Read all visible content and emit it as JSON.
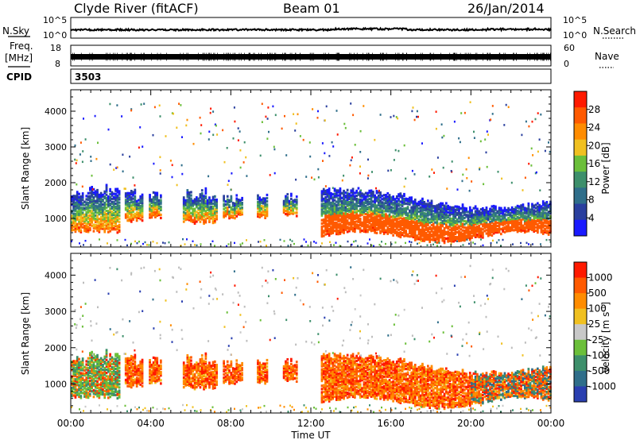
{
  "header": {
    "title": "Clyde River (fitACF)",
    "beam": "Beam 01",
    "date": "26/Jan/2014"
  },
  "strip_nsky": {
    "left_label": "N.Sky",
    "right_label": "N.Search",
    "left_ticks": [
      "10^5",
      "10^0"
    ],
    "right_ticks": [
      "10^5",
      "10^0"
    ]
  },
  "strip_freq": {
    "left_label_1": "Freq.",
    "left_label_2": "[MHz]",
    "right_label": "Nave",
    "left_ticks": [
      "18",
      "8"
    ],
    "right_ticks": [
      "60",
      "0"
    ]
  },
  "cpid": {
    "label": "CPID",
    "value": "3503"
  },
  "colors": {
    "power_scale": [
      "#1a1aff",
      "#2a3f9e",
      "#2f6e8a",
      "#3d8f6b",
      "#6bbf3a",
      "#f0c020",
      "#ff8c00",
      "#ff5a00",
      "#ff1a00"
    ],
    "velocity_scale": [
      "#2a3fb0",
      "#2f6e8a",
      "#3d8f6b",
      "#6bbf3a",
      "#c8c8c8",
      "#f0c020",
      "#ff8c00",
      "#ff5a00",
      "#ff1a00"
    ],
    "ground_scatter": "#bdbdbd"
  },
  "chart_data": [
    {
      "type": "heatmap",
      "name": "power-panel",
      "ylabel": "Slant Range [km]",
      "ylim": [
        200,
        4600
      ],
      "y_ticks": [
        "1000",
        "2000",
        "3000",
        "4000"
      ],
      "x_ticks": [
        "00:00",
        "04:00",
        "08:00",
        "12:00",
        "16:00",
        "20:00",
        "00:00"
      ],
      "colorbar": {
        "label": "Power [dB]",
        "ticks": [
          "28",
          "24",
          "20",
          "16",
          "12",
          "8",
          "4"
        ]
      },
      "echo_regions": [
        {
          "start_h": 0.0,
          "end_h": 2.4,
          "range_lo": 700,
          "range_hi": 2000
        },
        {
          "start_h": 2.7,
          "end_h": 3.6,
          "range_lo": 1000,
          "range_hi": 1900
        },
        {
          "start_h": 3.9,
          "end_h": 4.5,
          "range_lo": 1100,
          "range_hi": 1800
        },
        {
          "start_h": 5.6,
          "end_h": 7.3,
          "range_lo": 950,
          "range_hi": 1900
        },
        {
          "start_h": 7.6,
          "end_h": 8.6,
          "range_lo": 1100,
          "range_hi": 1800
        },
        {
          "start_h": 9.3,
          "end_h": 9.8,
          "range_lo": 1100,
          "range_hi": 1750
        },
        {
          "start_h": 10.6,
          "end_h": 11.3,
          "range_lo": 1150,
          "range_hi": 1800
        },
        {
          "start_h": 12.5,
          "end_h": 24.0,
          "range_lo": 500,
          "range_hi": 1900
        }
      ]
    },
    {
      "type": "heatmap",
      "name": "velocity-panel",
      "ylabel": "Slant Range [km]",
      "xlabel": "Time UT",
      "ylim": [
        200,
        4600
      ],
      "y_ticks": [
        "1000",
        "2000",
        "3000",
        "4000"
      ],
      "x_ticks": [
        "00:00",
        "04:00",
        "08:00",
        "12:00",
        "16:00",
        "20:00",
        "00:00"
      ],
      "colorbar": {
        "label": "Velocity [m s",
        "label_exp": "-1",
        "label_end": "]",
        "ticks": [
          "1000",
          "500",
          "100",
          "25",
          "-25",
          "-100",
          "-500",
          "-1000"
        ]
      }
    }
  ]
}
